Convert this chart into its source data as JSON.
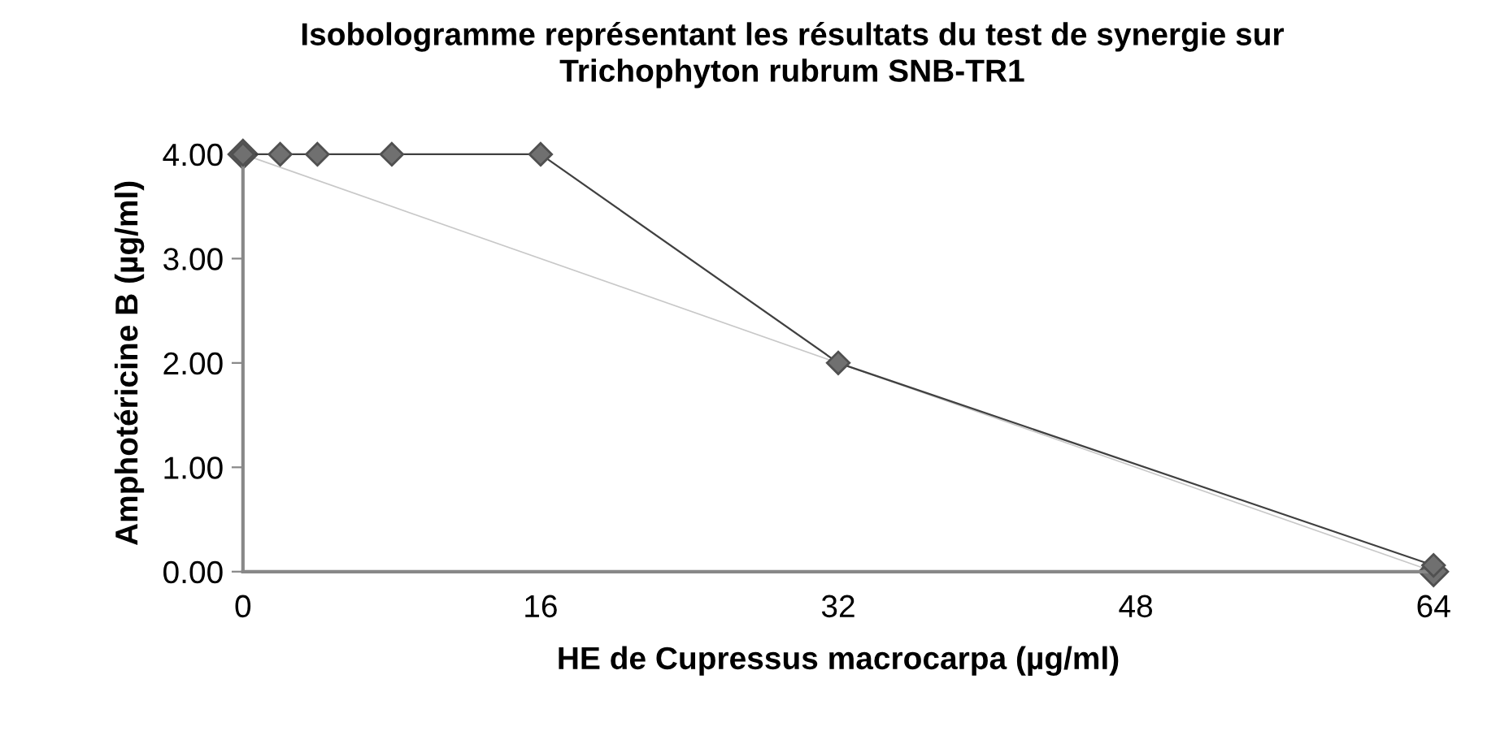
{
  "chart_data": {
    "type": "line",
    "title": "Isobologramme représentant les résultats du test de synergie sur\nTrichophyton rubrum SNB-TR1",
    "xlabel": "HE de Cupressus macrocarpa (µg/ml)",
    "ylabel": "Amphotéricine B (µg/ml)",
    "series": [
      {
        "color": "#404040",
        "x": [
          0,
          2,
          4,
          8,
          16,
          32,
          64
        ],
        "values": [
          4,
          4,
          4,
          4,
          4,
          2,
          0.06
        ]
      },
      {
        "color": "#c8c8c8",
        "x": [
          0,
          64
        ],
        "values": [
          4,
          0
        ]
      }
    ],
    "marker": "diamond",
    "xlim": [
      0,
      64
    ],
    "xticks": [
      0,
      16,
      32,
      48,
      64
    ],
    "ylim": [
      0,
      4
    ],
    "yticks": [
      {
        "value": 0,
        "label": "0.00"
      },
      {
        "value": 1,
        "label": "1.00"
      },
      {
        "value": 2,
        "label": "2.00"
      },
      {
        "value": 3,
        "label": "3.00"
      },
      {
        "value": 4,
        "label": "4.00"
      }
    ],
    "grid": false,
    "legend": false
  }
}
